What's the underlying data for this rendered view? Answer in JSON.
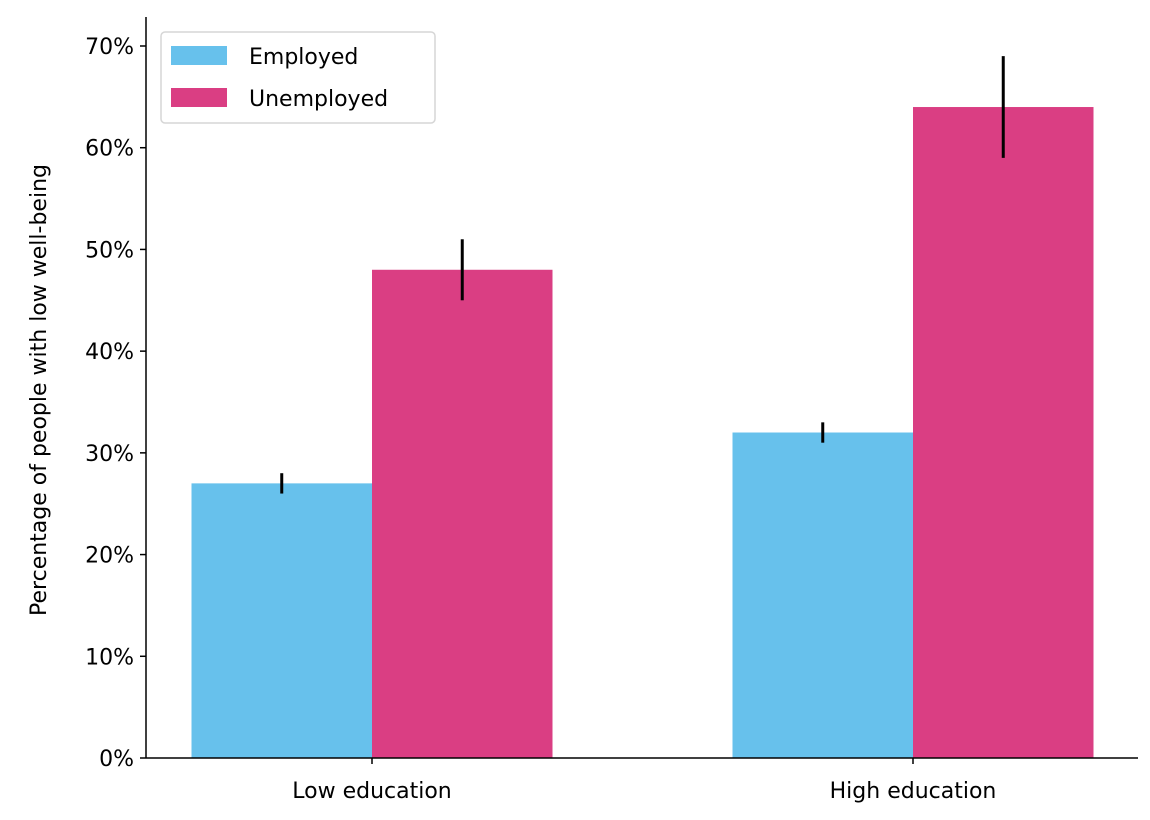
{
  "chart_data": {
    "type": "bar",
    "title": "",
    "xlabel": "",
    "ylabel": "Percentage of people with low well-being",
    "categories": [
      "Low education",
      "High education"
    ],
    "series": [
      {
        "name": "Employed",
        "color": "#67c1ec",
        "values": [
          27,
          32
        ],
        "err_low": [
          26,
          31
        ],
        "err_high": [
          28,
          33
        ]
      },
      {
        "name": "Unemployed",
        "color": "#da3e83",
        "values": [
          48,
          64
        ],
        "err_low": [
          45,
          59
        ],
        "err_high": [
          51,
          69
        ]
      }
    ],
    "ylim": [
      0,
      72.8
    ],
    "yticks": [
      0,
      10,
      20,
      30,
      40,
      50,
      60,
      70
    ],
    "ytick_labels": [
      "0%",
      "10%",
      "20%",
      "30%",
      "40%",
      "50%",
      "60%",
      "70%"
    ],
    "grid": false,
    "legend_position": "top-left"
  }
}
